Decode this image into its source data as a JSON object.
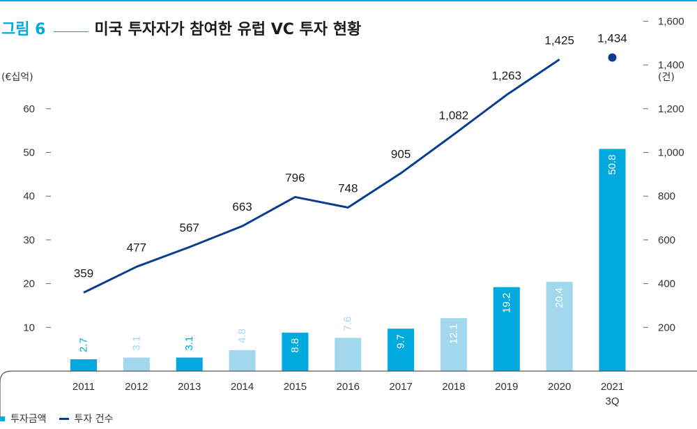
{
  "header": {
    "figure_label": "그림 6",
    "title": "미국 투자자가 참여한 유럽 VC 투자 현황"
  },
  "colors": {
    "accent": "#00aade",
    "bar_dark": "#00aade",
    "bar_light": "#a2d8ee",
    "line": "#0a3d8f",
    "point": "#0a3d8f"
  },
  "chart_data": {
    "type": "bar",
    "categories": [
      "2011",
      "2012",
      "2013",
      "2014",
      "2015",
      "2016",
      "2017",
      "2018",
      "2019",
      "2020",
      "2021\n3Q"
    ],
    "series": [
      {
        "name": "투자금액",
        "type": "bar",
        "axis": "left",
        "values": [
          2.7,
          3.1,
          3.1,
          4.8,
          8.8,
          7.6,
          9.7,
          12.1,
          19.2,
          20.4,
          50.8
        ],
        "labels": [
          "2.7",
          "3.1",
          "3.1",
          "4.8",
          "8.8",
          "7.6",
          "9.7",
          "12.1",
          "19.2",
          "20.4",
          "50.8"
        ]
      },
      {
        "name": "투자 건수",
        "type": "line",
        "axis": "right",
        "values": [
          359,
          477,
          567,
          663,
          796,
          748,
          905,
          1082,
          1263,
          1425,
          1434
        ],
        "labels": [
          "359",
          "477",
          "567",
          "663",
          "796",
          "748",
          "905",
          "1,082",
          "1,263",
          "1,425",
          "1,434"
        ],
        "last_point_separate": true
      }
    ],
    "y_left": {
      "unit": "(€십억)",
      "ticks": [
        "10",
        "20",
        "30",
        "40",
        "50",
        "60"
      ],
      "tick_values": [
        10,
        20,
        30,
        40,
        50,
        60
      ]
    },
    "y_right": {
      "unit": "(건)",
      "ticks": [
        "200",
        "400",
        "600",
        "800",
        "1,000",
        "1,200",
        "1,400",
        "1,600"
      ],
      "tick_values": [
        200,
        400,
        600,
        800,
        1000,
        1200,
        1400,
        1600
      ]
    },
    "legend_position": "bottom-left",
    "grid": false
  }
}
